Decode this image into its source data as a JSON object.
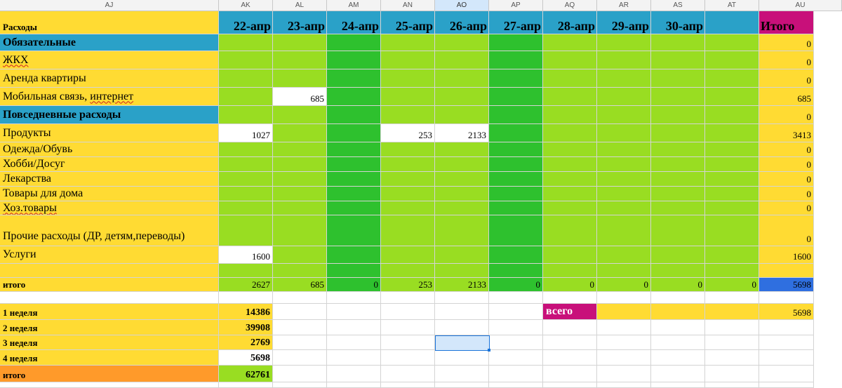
{
  "columns": [
    "AJ",
    "AK",
    "AL",
    "AM",
    "AN",
    "AO",
    "AP",
    "AQ",
    "AR",
    "AS",
    "AT",
    "AU"
  ],
  "selected_column": "AO",
  "header": {
    "label": "Расходы",
    "dates": [
      "22-апр",
      "23-апр",
      "24-апр",
      "25-апр",
      "26-апр",
      "27-апр",
      "28-апр",
      "29-апр",
      "30-апр",
      ""
    ],
    "total_label": "Итого"
  },
  "categories": [
    {
      "label": "Обязательные",
      "kind": "section",
      "values": [
        "",
        "",
        "",
        "",
        "",
        "",
        "",
        "",
        "",
        ""
      ],
      "total": "0"
    },
    {
      "label": "ЖКХ",
      "kind": "item",
      "values": [
        "",
        "",
        "",
        "",
        "",
        "",
        "",
        "",
        "",
        ""
      ],
      "total": "0"
    },
    {
      "label": "Аренда квартиры",
      "kind": "item",
      "values": [
        "",
        "",
        "",
        "",
        "",
        "",
        "",
        "",
        "",
        ""
      ],
      "total": "0"
    },
    {
      "label": "Мобильная связь, интернет",
      "kind": "item",
      "values": [
        "",
        "685",
        "",
        "",
        "",
        "",
        "",
        "",
        "",
        ""
      ],
      "total": "685"
    },
    {
      "label": "Повседневные расходы",
      "kind": "section",
      "values": [
        "",
        "",
        "",
        "",
        "",
        "",
        "",
        "",
        "",
        ""
      ],
      "total": "0"
    },
    {
      "label": "Продукты",
      "kind": "item",
      "values": [
        "1027",
        "",
        "",
        "253",
        "2133",
        "",
        "",
        "",
        "",
        ""
      ],
      "total": "3413"
    },
    {
      "label": "Одежда/Обувь",
      "kind": "item",
      "values": [
        "",
        "",
        "",
        "",
        "",
        "",
        "",
        "",
        "",
        ""
      ],
      "total": "0"
    },
    {
      "label": "Хобби/Досуг",
      "kind": "item",
      "values": [
        "",
        "",
        "",
        "",
        "",
        "",
        "",
        "",
        "",
        ""
      ],
      "total": "0"
    },
    {
      "label": "Лекарства",
      "kind": "item",
      "values": [
        "",
        "",
        "",
        "",
        "",
        "",
        "",
        "",
        "",
        ""
      ],
      "total": "0"
    },
    {
      "label": "Товары для дома",
      "kind": "item",
      "values": [
        "",
        "",
        "",
        "",
        "",
        "",
        "",
        "",
        "",
        ""
      ],
      "total": "0"
    },
    {
      "label": "Хоз.товары",
      "kind": "item",
      "values": [
        "",
        "",
        "",
        "",
        "",
        "",
        "",
        "",
        "",
        ""
      ],
      "total": "0"
    },
    {
      "label": "Прочие расходы (ДР, детям,переводы)",
      "kind": "item",
      "values": [
        "",
        "",
        "",
        "",
        "",
        "",
        "",
        "",
        "",
        ""
      ],
      "total": "0"
    },
    {
      "label": "Услуги",
      "kind": "item",
      "values": [
        "1600",
        "",
        "",
        "",
        "",
        "",
        "",
        "",
        "",
        ""
      ],
      "total": "1600"
    },
    {
      "label": "",
      "kind": "blank",
      "values": [
        "",
        "",
        "",
        "",
        "",
        "",
        "",
        "",
        "",
        ""
      ],
      "total": ""
    }
  ],
  "daily_total": {
    "label": "итого",
    "values": [
      "2627",
      "685",
      "0",
      "253",
      "2133",
      "0",
      "0",
      "0",
      "0",
      "0"
    ],
    "total": "5698"
  },
  "weeks": [
    {
      "label": "1 неделя",
      "value": "14386"
    },
    {
      "label": "2 неделя",
      "value": "39908"
    },
    {
      "label": "3 неделя",
      "value": "2769"
    },
    {
      "label": "4 неделя",
      "value": "5698"
    },
    {
      "label": "итого",
      "value": "62761"
    }
  ],
  "grand": {
    "label": "всего",
    "value": "5698"
  },
  "colors": {
    "yellow": "#ffdb33",
    "blue": "#2aa1c8",
    "light_green": "#99dd22",
    "dark_green": "#2ec12e",
    "magenta": "#c8107a",
    "orange": "#ff9a2a",
    "royal_blue": "#2f6fe0"
  }
}
